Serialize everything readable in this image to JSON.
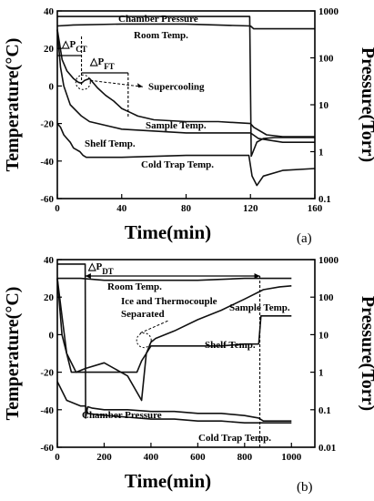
{
  "chart_data": [
    {
      "type": "line",
      "panel_label": "(a)",
      "xlabel": "Time(min)",
      "ylabel": "Temperature(°C)",
      "y2label": "Pressure(Torr)",
      "xlim": [
        0,
        160
      ],
      "ylim": [
        -60,
        40
      ],
      "y2lim": [
        0.1,
        1000
      ],
      "y2scale": "log",
      "x_ticks": [
        "0",
        "40",
        "80",
        "120",
        "160"
      ],
      "y_ticks": [
        "40",
        "20",
        "0",
        "-20",
        "-40",
        "-60"
      ],
      "y2_ticks": [
        "1000",
        "100",
        "10",
        "1",
        "0.1"
      ],
      "series": [
        {
          "name": "Chamber Pressure",
          "axis": "right",
          "x": [
            0,
            119.5,
            120.5,
            124,
            128,
            135,
            145,
            160
          ],
          "y": [
            760,
            760,
            0.8,
            1.6,
            1.9,
            2.0,
            2.0,
            2.0
          ]
        },
        {
          "name": "Room Temp.",
          "axis": "left",
          "x": [
            0,
            10,
            40,
            80,
            120,
            122,
            160
          ],
          "y": [
            32,
            32.5,
            33,
            33,
            32,
            30.5,
            30.5
          ]
        },
        {
          "name": "Sample Temp.",
          "axis": "left",
          "x": [
            0,
            3,
            6,
            10,
            13,
            15,
            17,
            20,
            25,
            30,
            35,
            40,
            45,
            50,
            60,
            80,
            100,
            120,
            122,
            130,
            140,
            160
          ],
          "y": [
            30,
            14,
            8,
            4,
            2,
            1.5,
            3,
            4,
            -1,
            -5,
            -8,
            -12,
            -14,
            -16,
            -18,
            -19,
            -19,
            -20,
            -22,
            -26,
            -27,
            -27
          ]
        },
        {
          "name": "Shelf Temp.",
          "axis": "left",
          "x": [
            0,
            2,
            4,
            8,
            15,
            20,
            40,
            80,
            120,
            125,
            140,
            160
          ],
          "y": [
            30,
            10,
            0,
            -10,
            -16,
            -19,
            -23,
            -25,
            -25,
            -28,
            -30,
            -30
          ]
        },
        {
          "name": "Cold Trap Temp.",
          "axis": "left",
          "x": [
            0,
            2,
            4,
            6,
            8,
            10,
            12,
            14,
            16,
            18,
            20,
            40,
            80,
            119,
            121,
            124,
            128,
            140,
            160
          ],
          "y": [
            -20,
            -22,
            -26,
            -28,
            -30,
            -33,
            -34,
            -35,
            -37,
            -38,
            -38,
            -38,
            -37,
            -37,
            -48,
            -53,
            -48,
            -45,
            -44
          ]
        }
      ],
      "annotations": [
        {
          "text": "△P",
          "sub": "CT",
          "x": 15
        },
        {
          "text": "△P",
          "sub": "FT",
          "x": 32
        },
        {
          "text": "Supercooling",
          "x": 90,
          "y": 2
        }
      ]
    },
    {
      "type": "line",
      "panel_label": "(b)",
      "xlabel": "Time(min)",
      "ylabel": "Temperature(°C)",
      "y2label": "Pressure(Torr)",
      "xlim": [
        0,
        1100
      ],
      "ylim": [
        -60,
        40
      ],
      "y2lim": [
        0.01,
        1000
      ],
      "y2scale": "log",
      "x_ticks": [
        "0",
        "200",
        "400",
        "600",
        "800",
        "1000"
      ],
      "y_ticks": [
        "40",
        "20",
        "0",
        "-20",
        "-40",
        "-60"
      ],
      "y2_ticks": [
        "1000",
        "100",
        "10",
        "1",
        "0.1",
        "0.01"
      ],
      "series": [
        {
          "name": "Chamber Pressure",
          "axis": "right",
          "x": [
            0,
            119,
            121,
            130,
            150,
            200,
            300,
            400,
            500,
            600,
            700,
            800,
            860,
            880,
            950,
            1000
          ],
          "y": [
            760,
            760,
            0.06,
            0.12,
            0.11,
            0.1,
            0.1,
            0.09,
            0.09,
            0.08,
            0.08,
            0.07,
            0.06,
            0.05,
            0.05,
            0.05
          ]
        },
        {
          "name": "Room Temp.",
          "axis": "left",
          "x": [
            0,
            100,
            200,
            400,
            600,
            800,
            1000
          ],
          "y": [
            30,
            30,
            29,
            29,
            29,
            30,
            30
          ]
        },
        {
          "name": "Sample Temp.",
          "axis": "left",
          "x": [
            0,
            20,
            40,
            80,
            120,
            200,
            300,
            360,
            380,
            400,
            420,
            500,
            600,
            700,
            800,
            880,
            950,
            1000
          ],
          "y": [
            30,
            10,
            -10,
            -20,
            -18,
            -15,
            -22,
            -35,
            -10,
            -4,
            -2,
            2,
            8,
            13,
            19,
            24,
            25.5,
            26
          ]
        },
        {
          "name": "Shelf Temp.",
          "axis": "left",
          "x": [
            0,
            20,
            60,
            120,
            200,
            300,
            340,
            360,
            380,
            400,
            500,
            600,
            700,
            800,
            860,
            870,
            1000
          ],
          "y": [
            30,
            0,
            -20,
            -20,
            -20,
            -20,
            -20,
            -14,
            -10,
            -6,
            -6,
            -6,
            -6,
            -5,
            -5,
            10,
            10
          ]
        },
        {
          "name": "Cold Trap Temp.",
          "axis": "left",
          "x": [
            0,
            40,
            100,
            120,
            130,
            200,
            300,
            400,
            500,
            600,
            700,
            800,
            900,
            1000
          ],
          "y": [
            -25,
            -35,
            -38,
            -38,
            -42,
            -43,
            -44,
            -45,
            -45,
            -46,
            -46,
            -47,
            -47,
            -47
          ]
        }
      ],
      "annotations": [
        {
          "text": "△P",
          "sub": "DT",
          "x": 160
        },
        {
          "text": "Ice and Thermocouple",
          "x": 400,
          "y": 8
        },
        {
          "text": "Separated",
          "x": 400,
          "y": 0
        }
      ]
    }
  ]
}
